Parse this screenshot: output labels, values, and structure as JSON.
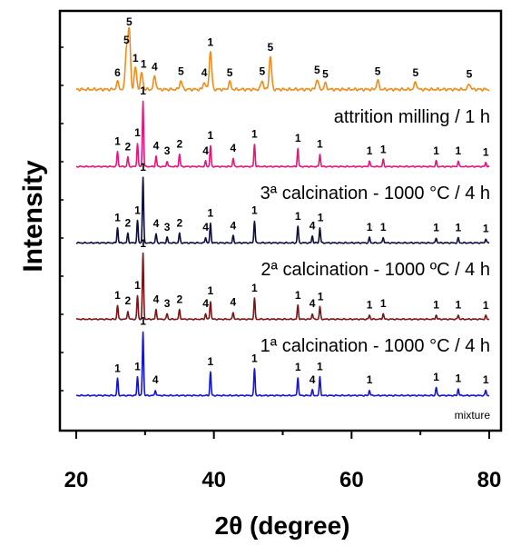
{
  "chart_data": {
    "type": "line",
    "xlabel": "2θ (degree)",
    "ylabel": "Intensity",
    "xlim": [
      20,
      82
    ],
    "xticks": [
      20,
      40,
      60,
      80
    ],
    "grid": false,
    "series": [
      {
        "name": "attrition milling / 1 h",
        "color": "#F28C18",
        "peaks": [
          [
            26.0,
            0.1,
            "6"
          ],
          [
            27.3,
            0.55,
            "5"
          ],
          [
            27.7,
            0.8,
            "5"
          ],
          [
            28.6,
            0.3,
            "1"
          ],
          [
            29.5,
            0.22,
            "1"
          ],
          [
            31.4,
            0.18,
            "4"
          ],
          [
            35.2,
            0.12,
            "5"
          ],
          [
            38.6,
            0.1,
            "4"
          ],
          [
            39.5,
            0.52,
            "1"
          ],
          [
            42.3,
            0.1,
            "5"
          ],
          [
            47.0,
            0.12,
            "5"
          ],
          [
            48.2,
            0.45,
            "5"
          ],
          [
            55.0,
            0.14,
            "5"
          ],
          [
            56.2,
            0.08,
            "5"
          ],
          [
            63.8,
            0.12,
            "5"
          ],
          [
            69.3,
            0.1,
            "5"
          ],
          [
            77.1,
            0.08,
            "5"
          ]
        ]
      },
      {
        "name": "3ª calcination - 1000 °C / 4 h",
        "color": "#E6157E",
        "peaks": [
          [
            26.0,
            0.22,
            "1"
          ],
          [
            27.5,
            0.14,
            "2"
          ],
          [
            28.9,
            0.34,
            "1"
          ],
          [
            29.7,
            0.95,
            "1"
          ],
          [
            31.6,
            0.15,
            "4"
          ],
          [
            33.2,
            0.08,
            "3"
          ],
          [
            35.0,
            0.18,
            "2"
          ],
          [
            38.8,
            0.08,
            "4"
          ],
          [
            39.5,
            0.3,
            "1"
          ],
          [
            42.8,
            0.12,
            "4"
          ],
          [
            45.9,
            0.32,
            "1"
          ],
          [
            52.2,
            0.26,
            "1"
          ],
          [
            55.4,
            0.18,
            "1"
          ],
          [
            62.6,
            0.08,
            "1"
          ],
          [
            64.6,
            0.1,
            "1"
          ],
          [
            72.3,
            0.08,
            "1"
          ],
          [
            75.5,
            0.08,
            "1"
          ],
          [
            79.5,
            0.06,
            "1"
          ]
        ]
      },
      {
        "name": "2ª calcination - 1000 ºC / 4 h",
        "color": "#0D0C3E",
        "peaks": [
          [
            26.0,
            0.22,
            "1"
          ],
          [
            27.5,
            0.14,
            "2"
          ],
          [
            28.9,
            0.32,
            "1"
          ],
          [
            29.7,
            0.95,
            "1"
          ],
          [
            31.6,
            0.13,
            "4"
          ],
          [
            33.2,
            0.08,
            "3"
          ],
          [
            35.0,
            0.14,
            "2"
          ],
          [
            38.8,
            0.08,
            "4"
          ],
          [
            39.5,
            0.28,
            "1"
          ],
          [
            42.8,
            0.1,
            "4"
          ],
          [
            45.9,
            0.32,
            "1"
          ],
          [
            52.2,
            0.24,
            "1"
          ],
          [
            54.3,
            0.1,
            "4"
          ],
          [
            55.4,
            0.22,
            "1"
          ],
          [
            62.6,
            0.08,
            "1"
          ],
          [
            64.6,
            0.08,
            "1"
          ],
          [
            72.3,
            0.07,
            "1"
          ],
          [
            75.5,
            0.07,
            "1"
          ],
          [
            79.5,
            0.06,
            "1"
          ]
        ]
      },
      {
        "name": "1ª calcination - 1000 °C / 4 h",
        "color": "#7C1416",
        "peaks": [
          [
            26.0,
            0.2,
            "1"
          ],
          [
            27.5,
            0.12,
            "2"
          ],
          [
            28.9,
            0.34,
            "1"
          ],
          [
            29.7,
            0.95,
            "1"
          ],
          [
            31.6,
            0.14,
            "4"
          ],
          [
            33.2,
            0.08,
            "3"
          ],
          [
            35.0,
            0.14,
            "2"
          ],
          [
            38.8,
            0.08,
            "4"
          ],
          [
            39.5,
            0.26,
            "1"
          ],
          [
            42.8,
            0.1,
            "4"
          ],
          [
            45.9,
            0.3,
            "1"
          ],
          [
            52.2,
            0.2,
            "1"
          ],
          [
            54.3,
            0.08,
            "4"
          ],
          [
            55.4,
            0.18,
            "1"
          ],
          [
            62.6,
            0.06,
            "1"
          ],
          [
            64.6,
            0.08,
            "1"
          ],
          [
            72.3,
            0.06,
            "1"
          ],
          [
            75.5,
            0.06,
            "1"
          ],
          [
            79.5,
            0.05,
            "1"
          ]
        ]
      },
      {
        "name": "mixture",
        "color": "#1414D6",
        "peaks": [
          [
            26.0,
            0.25,
            "1"
          ],
          [
            28.9,
            0.28,
            "1"
          ],
          [
            29.7,
            0.95,
            "1"
          ],
          [
            31.5,
            0.08,
            "4"
          ],
          [
            39.5,
            0.35,
            "1"
          ],
          [
            45.9,
            0.4,
            "1"
          ],
          [
            52.2,
            0.27,
            "1"
          ],
          [
            54.3,
            0.08,
            "4"
          ],
          [
            55.4,
            0.28,
            "1"
          ],
          [
            62.6,
            0.08,
            "1"
          ],
          [
            72.3,
            0.12,
            "1"
          ],
          [
            75.5,
            0.1,
            "1"
          ],
          [
            79.5,
            0.08,
            "1"
          ]
        ]
      }
    ]
  }
}
